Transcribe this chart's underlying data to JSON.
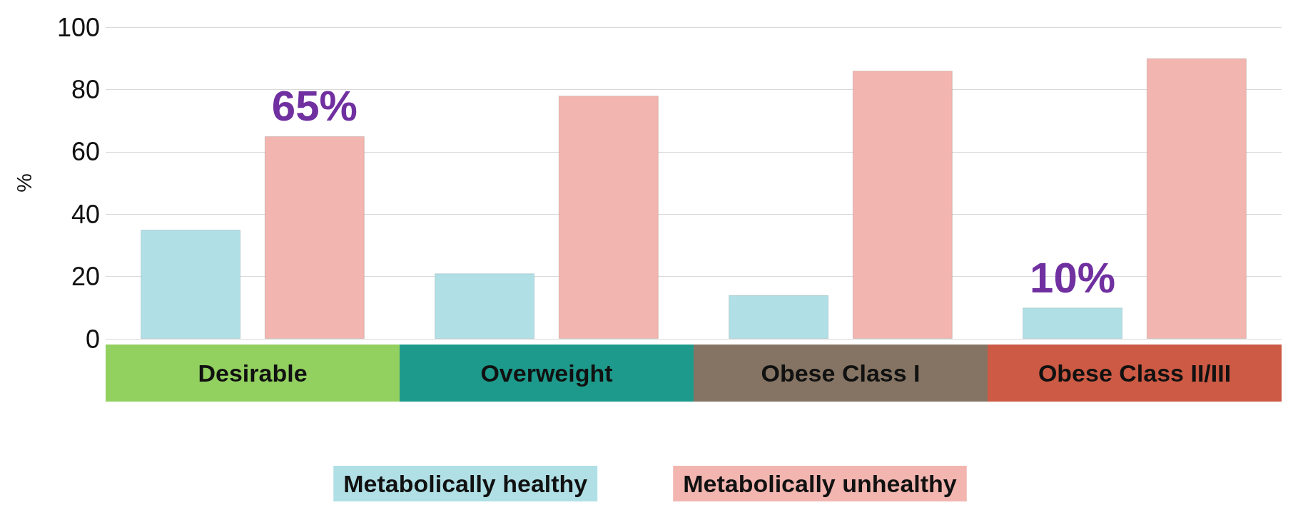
{
  "chart_data": {
    "type": "bar",
    "ylabel": "%",
    "categories": [
      "Desirable",
      "Overweight",
      "Obese Class I",
      "Obese Class II/III"
    ],
    "series": [
      {
        "name": "Metabolically healthy",
        "color": "#b0e0e6",
        "values": [
          35,
          21,
          14,
          10
        ],
        "value_labels": [
          null,
          null,
          null,
          "10%"
        ]
      },
      {
        "name": "Metabolically unhealthy",
        "color": "#f2b5b0",
        "values": [
          65,
          78,
          86,
          90
        ],
        "value_labels": [
          "65%",
          null,
          null,
          null
        ]
      }
    ],
    "ylim": [
      0,
      100
    ],
    "yticks": [
      0,
      20,
      40,
      60,
      80,
      100
    ],
    "grid": "y",
    "legend": "bottom"
  }
}
